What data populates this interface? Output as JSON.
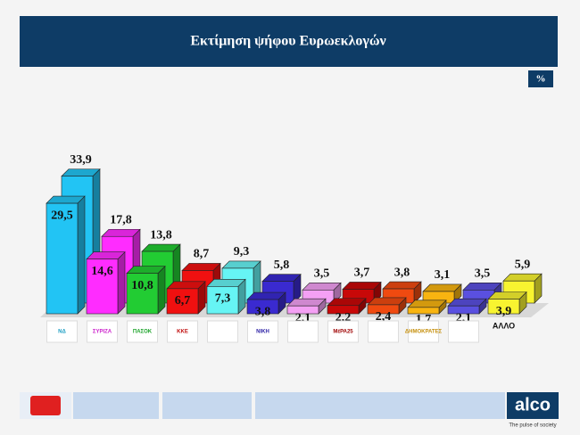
{
  "chart_data": {
    "type": "bar3d",
    "title": "Εκτίμηση ψήφου Ευρωεκλογών",
    "unit_label": "%",
    "categories": [
      "ΝΔ",
      "ΣΥΡΙΖΑ",
      "ΠΑΣΟΚ",
      "ΚΚΕ",
      null,
      "ΝΙΚΗ",
      null,
      "ΜέΡΑ25",
      null,
      "ΔΗΜΟΚΡΑΤΕΣ",
      null,
      "ΑΛΛΟ"
    ],
    "colors": [
      "#22c4f4",
      "#ff2cff",
      "#22cc33",
      "#f01010",
      "#66f4f4",
      "#3a2ad0",
      "#f4a0f4",
      "#c80808",
      "#f04a10",
      "#f8b410",
      "#5a50e0",
      "#f8f430"
    ],
    "series": [
      {
        "values": [
          33.9,
          17.8,
          13.8,
          8.7,
          9.3,
          5.8,
          3.5,
          3.7,
          3.8,
          3.1,
          3.5,
          5.9
        ],
        "value_labels": [
          "33,9",
          "17,8",
          "13,8",
          "8,7",
          "9,3",
          "5,8",
          "3,5",
          "3,7",
          "3,8",
          "3,1",
          "3,5",
          "5,9"
        ]
      },
      {
        "values": [
          29.5,
          14.6,
          10.8,
          6.7,
          7.3,
          3.8,
          2.1,
          2.2,
          2.4,
          1.7,
          2.1,
          3.9
        ],
        "value_labels": [
          "29,5",
          "14,6",
          "10,8",
          "6,7",
          "7,3",
          "3,8",
          "2,1",
          "2,2",
          "2,4",
          "1,7",
          "2,1",
          "3,9"
        ]
      }
    ],
    "footer_brand": "alco",
    "footer_tagline": "The pulse of society"
  }
}
